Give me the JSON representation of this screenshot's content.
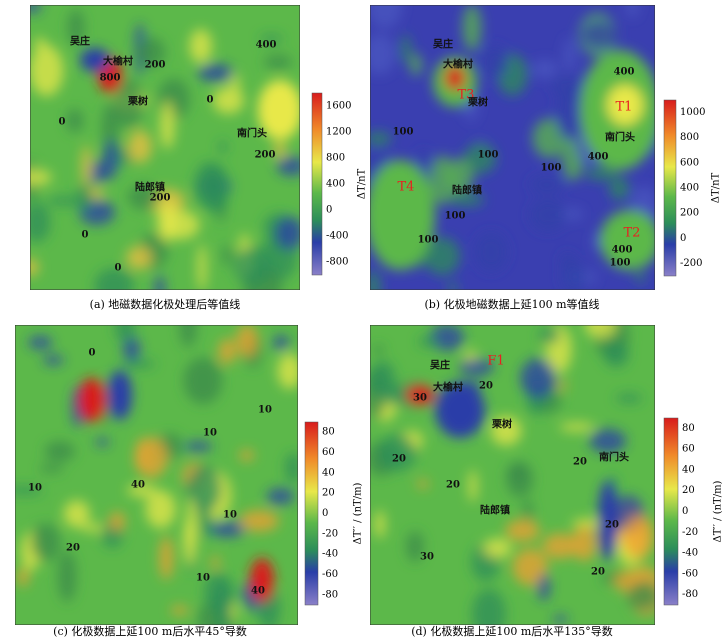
{
  "panels": [
    {
      "caption": "(a) 地磁数据化极处理后等值线",
      "colorbar": {
        "label": "ΔT/nT",
        "ticks": [
          "1600",
          "1200",
          "800",
          "400",
          "0",
          "-400",
          "-800"
        ]
      },
      "labels": [
        "吴庄",
        "大榆村",
        "800",
        "200",
        "栗树",
        "400",
        "南门头",
        "200",
        "陆郎镇",
        "200",
        "0",
        "0",
        "0",
        "0"
      ]
    },
    {
      "caption": "(b) 化极地磁数据上延100 m等值线",
      "colorbar": {
        "label": "ΔT/nT",
        "ticks": [
          "1000",
          "800",
          "600",
          "400",
          "200",
          "0",
          "-200"
        ]
      },
      "labels": [
        "吴庄",
        "大榆村",
        "T3",
        "栗树",
        "400",
        "T1",
        "南门头",
        "400",
        "100",
        "100",
        "100",
        "T4",
        "陆郎镇",
        "100",
        "100",
        "T2",
        "400",
        "100"
      ]
    },
    {
      "caption": "(c) 化极数据上延100 m后水平45°导数",
      "colorbar": {
        "label": "ΔT′′ / (nT/m)",
        "ticks": [
          "80",
          "60",
          "40",
          "20",
          "0",
          "-20",
          "-40",
          "-60",
          "-80"
        ]
      },
      "labels": [
        "0",
        "10",
        "10",
        "10",
        "40",
        "10",
        "20",
        "10",
        "40"
      ]
    },
    {
      "caption": "(d) 化极数据上延100 m后水平135°导数",
      "colorbar": {
        "label": "ΔT′′ / (nT/m)",
        "ticks": [
          "80",
          "60",
          "40",
          "20",
          "0",
          "-20",
          "-40",
          "-60",
          "-80"
        ]
      },
      "labels": [
        "吴庄",
        "F1",
        "大榆村",
        "20",
        "30",
        "栗树",
        "南门头",
        "20",
        "20",
        "陆郎镇",
        "20",
        "20",
        "30",
        "20"
      ]
    }
  ]
}
